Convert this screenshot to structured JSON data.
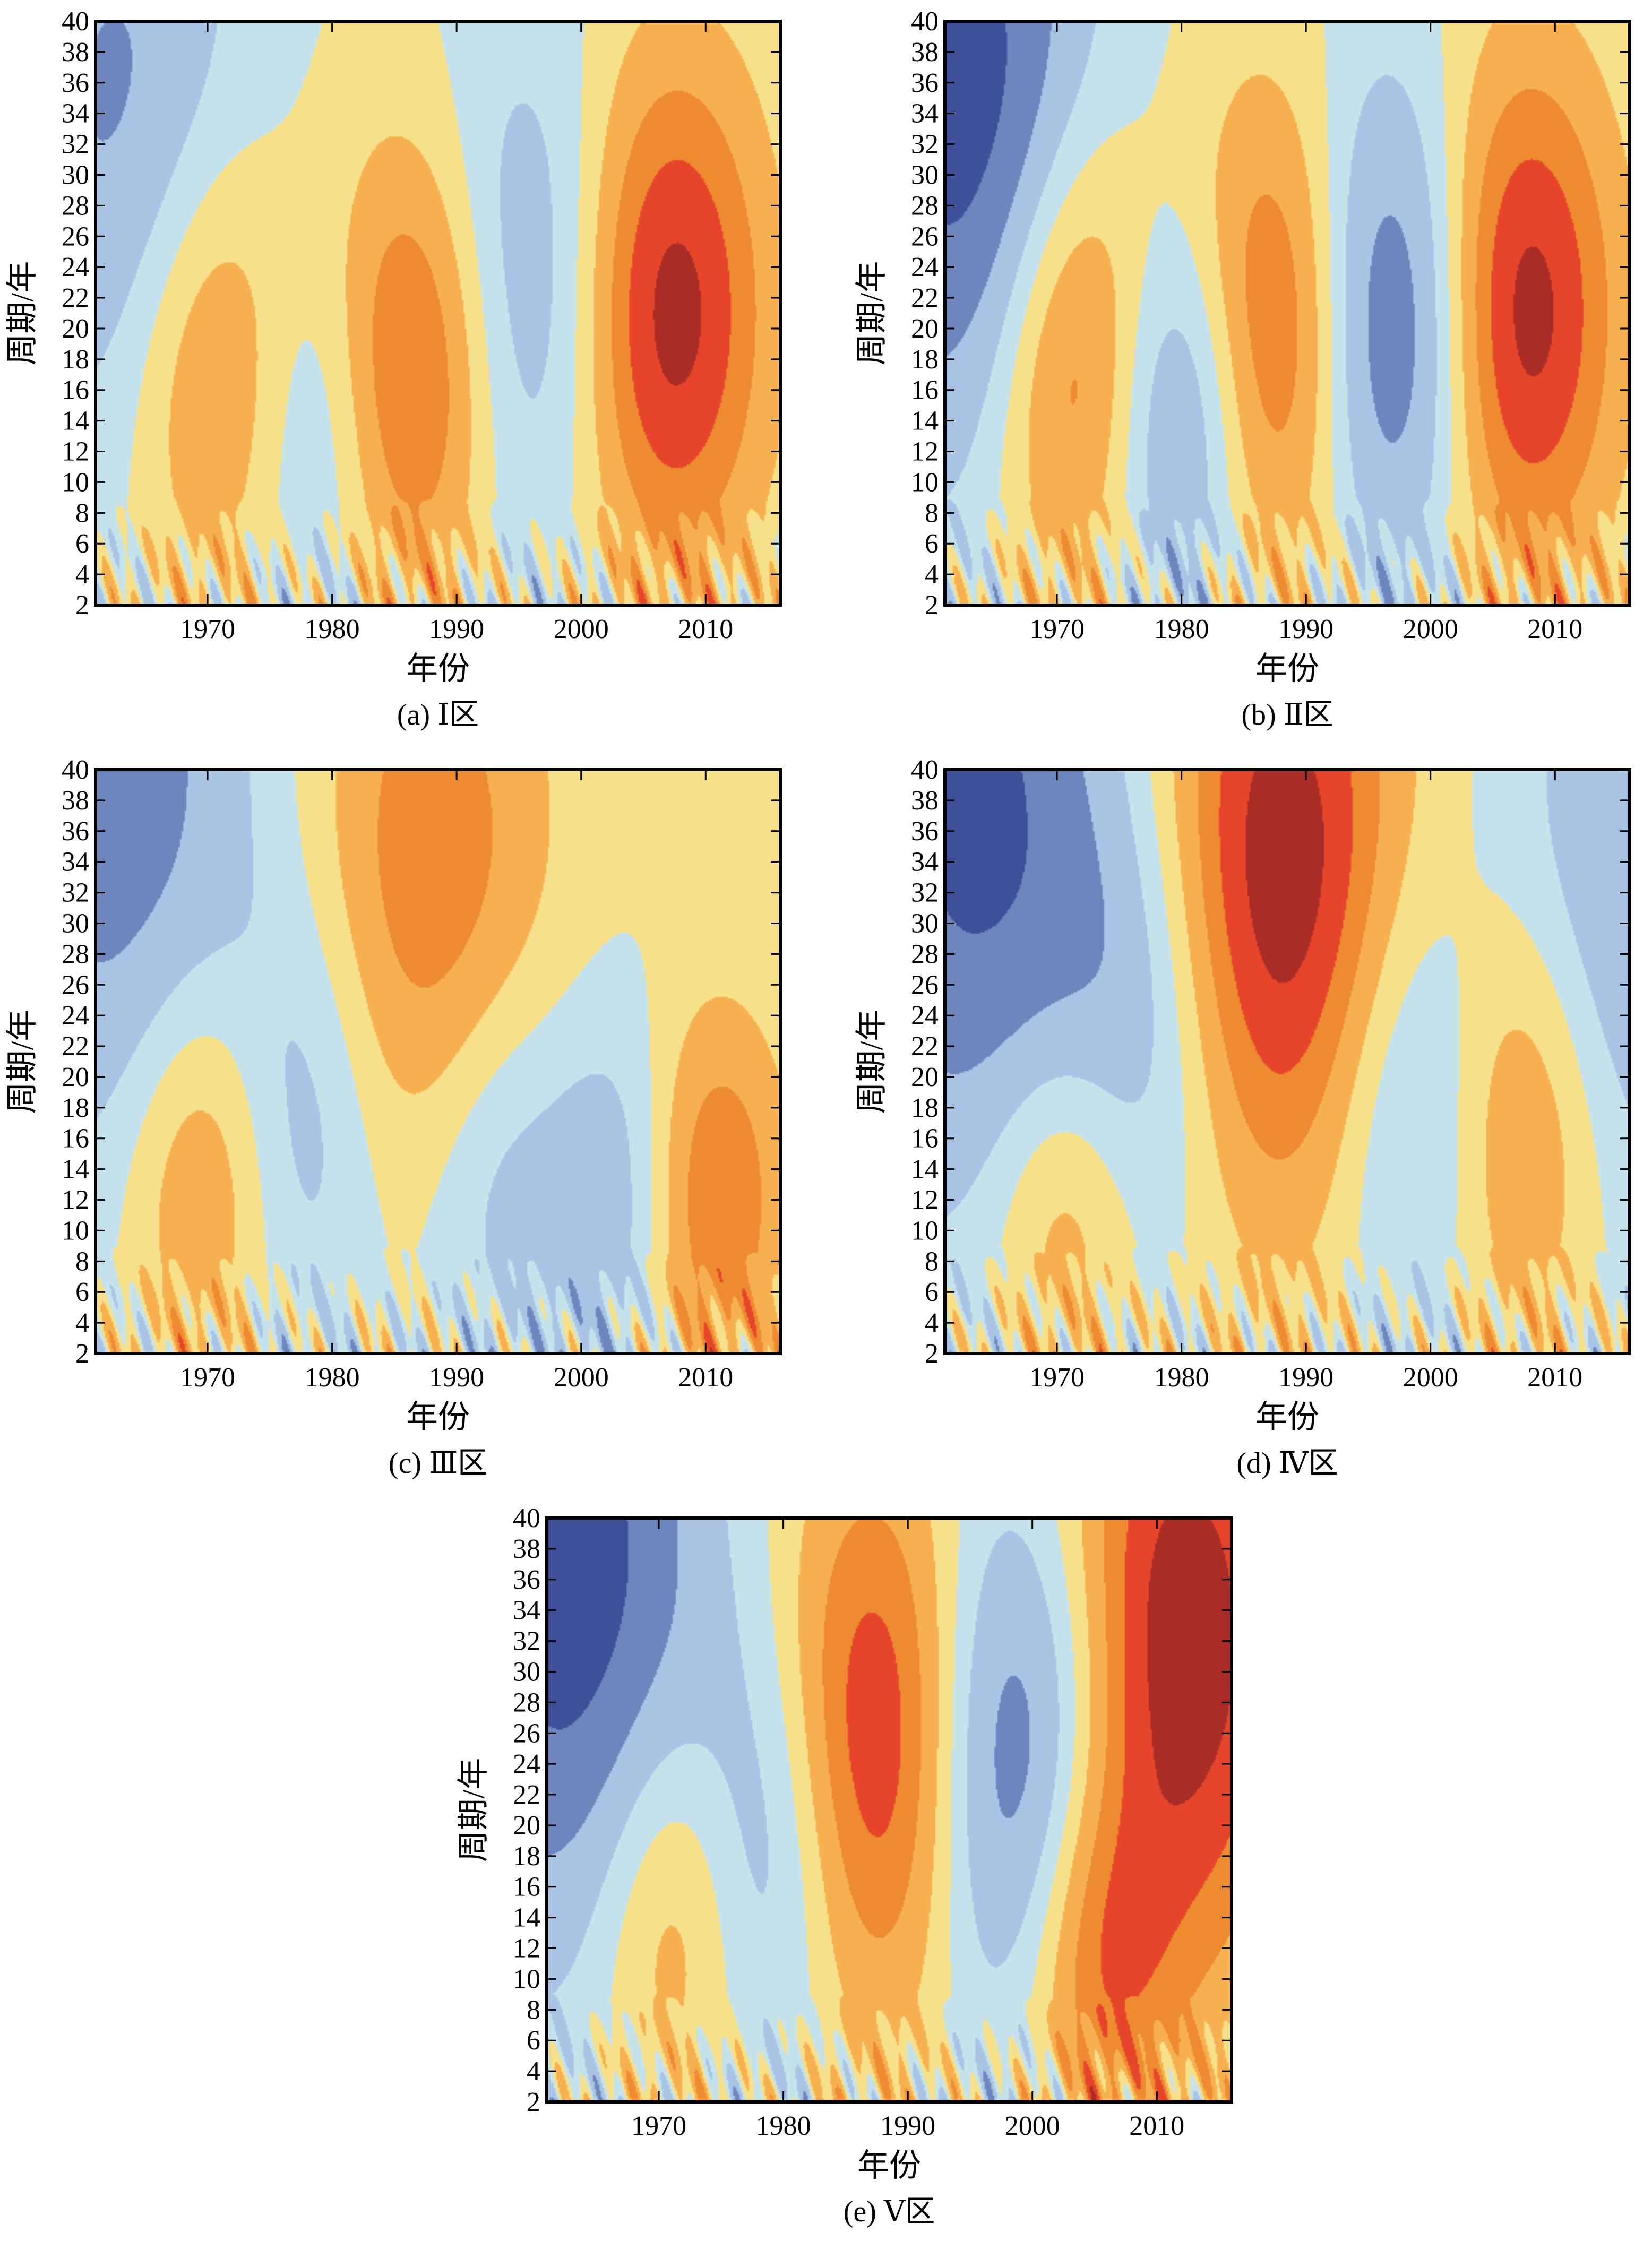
{
  "figure": {
    "colors": {
      "deep_blue": "#3f4f9a",
      "mid_blue": "#6d86bd",
      "light_blue": "#a9c4e4",
      "pale_blue": "#c6e3ec",
      "pale_yellow": "#f7e08a",
      "light_orange": "#f6b04f",
      "orange": "#ee8a2f",
      "red": "#e6452b",
      "dark_red": "#a92d26"
    }
  },
  "chart_data": [
    {
      "type": "heatmap",
      "caption": "(a) Ⅰ区",
      "xlabel": "年份",
      "ylabel": "周期/年",
      "xlim": [
        1961,
        2016
      ],
      "ylim": [
        2,
        40
      ],
      "xticks": [
        "1970",
        "1980",
        "1990",
        "2000",
        "2010"
      ],
      "yticks": [
        "2",
        "4",
        "6",
        "8",
        "10",
        "12",
        "14",
        "16",
        "18",
        "20",
        "22",
        "24",
        "26",
        "28",
        "30",
        "32",
        "34",
        "36",
        "38",
        "40"
      ],
      "centers": [
        {
          "year": 1971,
          "period": 17,
          "value": 0.6
        },
        {
          "year": 1979,
          "period": 14,
          "value": -0.5
        },
        {
          "year": 1986,
          "period": 17,
          "value": 0.85
        },
        {
          "year": 1996,
          "period": 22,
          "value": -0.5
        },
        {
          "year": 2007,
          "period": 21,
          "value": 0.95
        },
        {
          "year": 1963,
          "period": 34,
          "value": -0.5
        }
      ]
    },
    {
      "type": "heatmap",
      "caption": "(b) Ⅱ区",
      "xlabel": "年份",
      "ylabel": "周期/年",
      "xlim": [
        1961,
        2016
      ],
      "ylim": [
        2,
        40
      ],
      "xticks": [
        "1970",
        "1980",
        "1990",
        "2000",
        "2010"
      ],
      "yticks": [
        "2",
        "4",
        "6",
        "8",
        "10",
        "12",
        "14",
        "16",
        "18",
        "20",
        "22",
        "24",
        "26",
        "28",
        "30",
        "32",
        "34",
        "36",
        "38",
        "40"
      ],
      "centers": [
        {
          "year": 1972,
          "period": 18,
          "value": 0.85
        },
        {
          "year": 1980,
          "period": 15,
          "value": -0.9
        },
        {
          "year": 1987,
          "period": 19,
          "value": 0.95
        },
        {
          "year": 1997,
          "period": 20,
          "value": -0.9
        },
        {
          "year": 2007,
          "period": 21,
          "value": 1.0
        },
        {
          "year": 1963,
          "period": 34,
          "value": -0.9
        }
      ]
    },
    {
      "type": "heatmap",
      "caption": "(c) Ⅲ区",
      "xlabel": "年份",
      "ylabel": "周期/年",
      "xlim": [
        1961,
        2016
      ],
      "ylim": [
        2,
        40
      ],
      "xticks": [
        "1970",
        "1980",
        "1990",
        "2000",
        "2010"
      ],
      "yticks": [
        "2",
        "4",
        "6",
        "8",
        "10",
        "12",
        "14",
        "16",
        "18",
        "20",
        "22",
        "24",
        "26",
        "28",
        "30",
        "32",
        "34",
        "36",
        "38",
        "40"
      ],
      "centers": [
        {
          "year": 1970,
          "period": 14,
          "value": 0.6
        },
        {
          "year": 1977,
          "period": 17,
          "value": -0.45
        },
        {
          "year": 1988,
          "period": 32,
          "value": 0.6
        },
        {
          "year": 1993,
          "period": 14,
          "value": -0.4
        },
        {
          "year": 2004,
          "period": 12,
          "value": -0.5
        },
        {
          "year": 2010,
          "period": 12,
          "value": 0.75
        },
        {
          "year": 1963,
          "period": 38,
          "value": -0.6
        }
      ]
    },
    {
      "type": "heatmap",
      "caption": "(d) Ⅳ区",
      "xlabel": "年份",
      "ylabel": "周期/年",
      "xlim": [
        1961,
        2016
      ],
      "ylim": [
        2,
        40
      ],
      "xticks": [
        "1970",
        "1980",
        "1990",
        "2000",
        "2010"
      ],
      "yticks": [
        "2",
        "4",
        "6",
        "8",
        "10",
        "12",
        "14",
        "16",
        "18",
        "20",
        "22",
        "24",
        "26",
        "28",
        "30",
        "32",
        "34",
        "36",
        "38",
        "40"
      ],
      "centers": [
        {
          "year": 1971,
          "period": 12,
          "value": 0.55
        },
        {
          "year": 1976,
          "period": 22,
          "value": -0.5
        },
        {
          "year": 1988,
          "period": 33,
          "value": 1.0
        },
        {
          "year": 1999,
          "period": 18,
          "value": -0.5
        },
        {
          "year": 2007,
          "period": 17,
          "value": 0.6
        },
        {
          "year": 1963,
          "period": 38,
          "value": -0.8
        },
        {
          "year": 2015,
          "period": 30,
          "value": -0.45
        }
      ]
    },
    {
      "type": "heatmap",
      "caption": "(e) Ⅴ区",
      "xlabel": "年份",
      "ylabel": "周期/年",
      "xlim": [
        1961,
        2016
      ],
      "ylim": [
        2,
        40
      ],
      "xticks": [
        "1970",
        "1980",
        "1990",
        "2000",
        "2010"
      ],
      "yticks": [
        "2",
        "4",
        "6",
        "8",
        "10",
        "12",
        "14",
        "16",
        "18",
        "20",
        "22",
        "24",
        "26",
        "28",
        "30",
        "32",
        "34",
        "36",
        "38",
        "40"
      ],
      "centers": [
        {
          "year": 1972,
          "period": 15,
          "value": 0.65
        },
        {
          "year": 1978,
          "period": 18,
          "value": -0.65
        },
        {
          "year": 1988,
          "period": 25,
          "value": 1.0
        },
        {
          "year": 1998,
          "period": 24,
          "value": -0.9
        },
        {
          "year": 2012,
          "period": 32,
          "value": 1.0
        },
        {
          "year": 1963,
          "period": 36,
          "value": -0.9
        },
        {
          "year": 2005,
          "period": 11,
          "value": 0.6
        }
      ]
    }
  ]
}
